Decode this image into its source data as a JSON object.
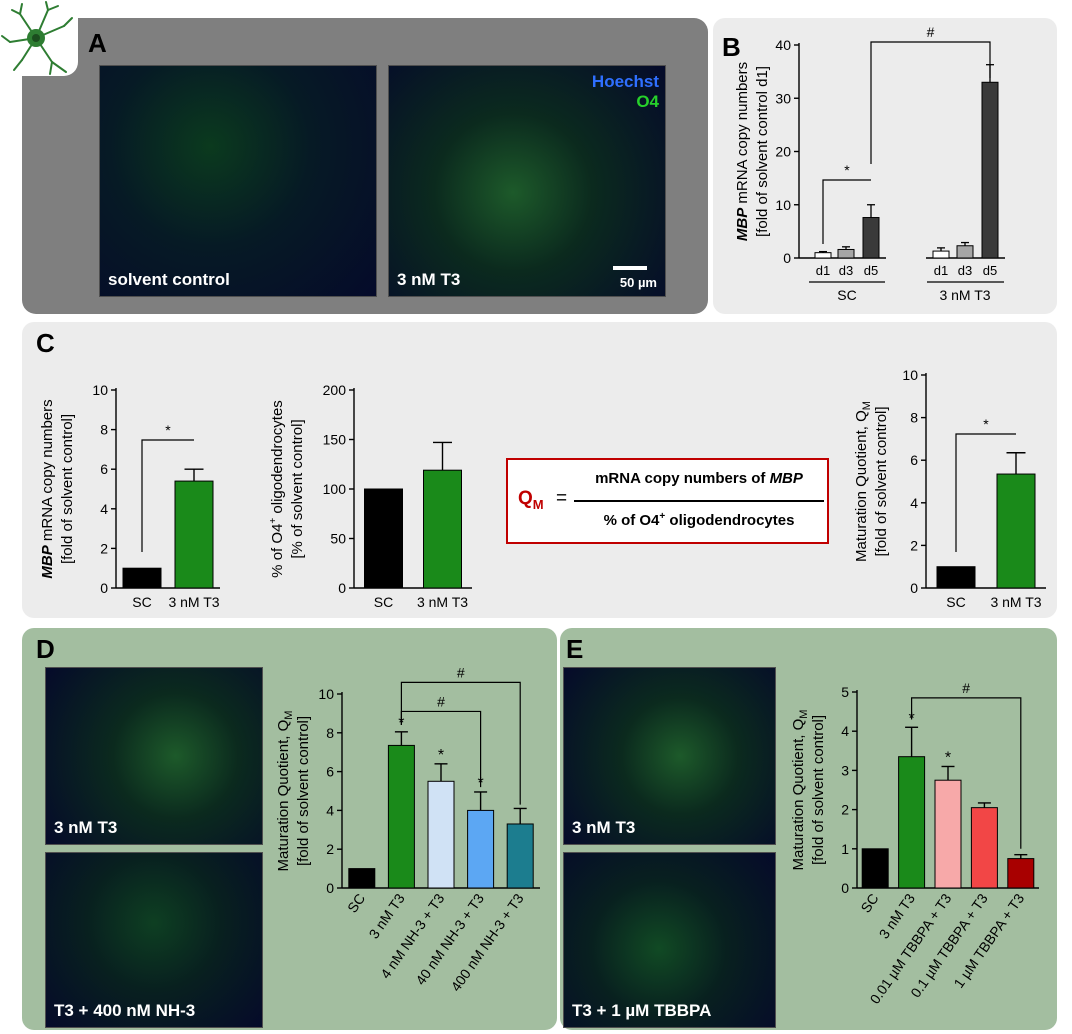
{
  "panels": {
    "A": {
      "label": "A",
      "images": [
        {
          "caption": "solvent control"
        },
        {
          "caption": "3 nM T3",
          "legend_hoechst": "Hoechst",
          "legend_o4": "O4",
          "scalebar": "50 µm"
        }
      ]
    },
    "B": {
      "label": "B"
    },
    "C": {
      "label": "C",
      "formula": {
        "lhs_main": "Q",
        "lhs_sub": "M",
        "equals": "=",
        "numerator_text": "mRNA copy numbers of ",
        "numerator_gene": "MBP",
        "denominator_text": "% of O4",
        "denominator_sup": "+",
        "denominator_tail": " oligodendrocytes"
      }
    },
    "D": {
      "label": "D",
      "images": [
        {
          "caption": "3 nM T3"
        },
        {
          "caption": "T3 + 400 nM NH-3"
        }
      ]
    },
    "E": {
      "label": "E",
      "images": [
        {
          "caption": "3 nM T3"
        },
        {
          "caption": "T3 + 1 µM TBBPA"
        }
      ]
    }
  },
  "colors": {
    "panel_A_bg": "#7f7f7f",
    "panel_BC_bg": "#ececec",
    "panel_DE_bg": "#a3bea0",
    "formula_border": "#c00000",
    "formula_red": "#c00000",
    "sc_black": "#000000",
    "t3_green": "#1a8a1a"
  },
  "chart_data": [
    {
      "id": "B",
      "type": "bar",
      "ylabel_gene": "MBP",
      "ylabel_rest": " mRNA copy numbers",
      "ylabel_line2": "[fold of solvent control d1]",
      "ylim": [
        0,
        40
      ],
      "yticks": [
        0,
        10,
        20,
        30,
        40
      ],
      "categories": [
        "d1",
        "d3",
        "d5",
        "d1",
        "d3",
        "d5"
      ],
      "groups": [
        "SC",
        "3 nM T3"
      ],
      "values": [
        1.0,
        1.6,
        7.6,
        1.3,
        2.3,
        33.0
      ],
      "errors": [
        0.2,
        0.5,
        2.4,
        0.6,
        0.6,
        3.3
      ],
      "bar_colors": [
        "#ffffff",
        "#a6a6a6",
        "#3a3a3a",
        "#ffffff",
        "#a6a6a6",
        "#3a3a3a"
      ],
      "brackets": [
        {
          "from": 0,
          "to": 2,
          "label": "*"
        },
        {
          "from": 2,
          "to": 5,
          "label": "#"
        }
      ]
    },
    {
      "id": "C1",
      "type": "bar",
      "ylabel_gene": "MBP",
      "ylabel_rest": " mRNA copy numbers",
      "ylabel_line2": "[fold of solvent control]",
      "ylim": [
        0,
        10
      ],
      "yticks": [
        0,
        2,
        4,
        6,
        8,
        10
      ],
      "categories": [
        "SC",
        "3 nM T3"
      ],
      "values": [
        1.0,
        5.4
      ],
      "errors": [
        0,
        0.6
      ],
      "bar_colors": [
        "#000000",
        "#1a8a1a"
      ],
      "brackets": [
        {
          "from": 0,
          "to": 1,
          "label": "*"
        }
      ]
    },
    {
      "id": "C2",
      "type": "bar",
      "ylabel_line1": "% of O4",
      "ylabel_sup": "+",
      "ylabel_tail": " oligodendrocytes",
      "ylabel_line2": "[% of solvent control]",
      "ylim": [
        0,
        200
      ],
      "yticks": [
        0,
        50,
        100,
        150,
        200
      ],
      "categories": [
        "SC",
        "3 nM T3"
      ],
      "values": [
        100,
        119
      ],
      "errors": [
        0,
        28
      ],
      "bar_colors": [
        "#000000",
        "#1a8a1a"
      ],
      "brackets": []
    },
    {
      "id": "C3",
      "type": "bar",
      "ylabel_line1": "Maturation Quotient, Q",
      "ylabel_sub": "M",
      "ylabel_line2": "[fold of solvent control]",
      "ylim": [
        0,
        10
      ],
      "yticks": [
        0,
        2,
        4,
        6,
        8,
        10
      ],
      "categories": [
        "SC",
        "3 nM T3"
      ],
      "values": [
        1.0,
        5.35
      ],
      "errors": [
        0,
        1.0
      ],
      "bar_colors": [
        "#000000",
        "#1a8a1a"
      ],
      "brackets": [
        {
          "from": 0,
          "to": 1,
          "label": "*"
        }
      ]
    },
    {
      "id": "D",
      "type": "bar",
      "ylabel_line1": "Maturation Quotient, Q",
      "ylabel_sub": "M",
      "ylabel_line2": "[fold of solvent control]",
      "ylim": [
        0,
        10
      ],
      "yticks": [
        0,
        2,
        4,
        6,
        8,
        10
      ],
      "categories": [
        "SC",
        "3 nM T3",
        "4 nM NH-3 + T3",
        "40 nM NH-3 + T3",
        "400 nM NH-3 + T3"
      ],
      "values": [
        1.0,
        7.35,
        5.5,
        4.0,
        3.3
      ],
      "errors": [
        0,
        0.7,
        0.9,
        0.95,
        0.8
      ],
      "bar_colors": [
        "#000000",
        "#1a8a1a",
        "#d0e2f5",
        "#5ca7f3",
        "#1c7d8f"
      ],
      "star_labels": [
        "",
        "*",
        "*",
        "*",
        ""
      ],
      "brackets": [
        {
          "from": 1,
          "to": 3,
          "label": "#"
        },
        {
          "from": 1,
          "to": 4,
          "label": "#"
        }
      ]
    },
    {
      "id": "E",
      "type": "bar",
      "ylabel_line1": "Maturation Quotient, Q",
      "ylabel_sub": "M",
      "ylabel_line2": "[fold of solvent control]",
      "ylim": [
        0,
        5
      ],
      "yticks": [
        0,
        1,
        2,
        3,
        4,
        5
      ],
      "categories": [
        "SC",
        "3 nM T3",
        "0.01 µM TBBPA + T3",
        "0.1 µM TBBPA + T3",
        "1 µM TBBPA + T3"
      ],
      "values": [
        1.0,
        3.35,
        2.75,
        2.05,
        0.75
      ],
      "errors": [
        0,
        0.75,
        0.35,
        0.12,
        0.1
      ],
      "bar_colors": [
        "#000000",
        "#1a8a1a",
        "#f7a9a9",
        "#f24646",
        "#a80000"
      ],
      "star_labels": [
        "",
        "*",
        "*",
        "",
        ""
      ],
      "brackets": [
        {
          "from": 1,
          "to": 4,
          "label": "#"
        }
      ]
    }
  ]
}
